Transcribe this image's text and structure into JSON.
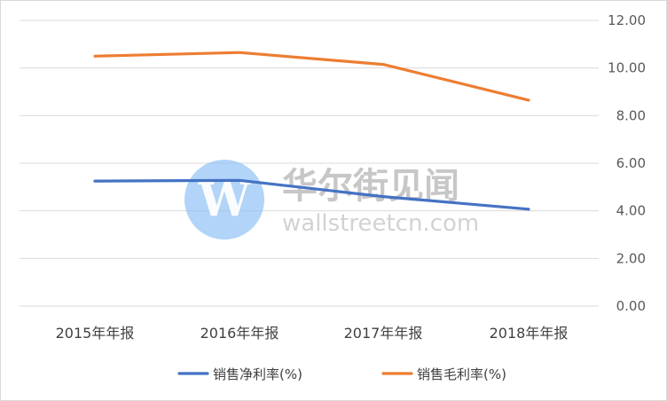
{
  "chart_data": {
    "type": "line",
    "categories": [
      "2015年年报",
      "2016年年报",
      "2017年年报",
      "2018年年报"
    ],
    "series": [
      {
        "name": "销售净利率(%)",
        "values": [
          5.25,
          5.28,
          4.6,
          4.07
        ],
        "color": "#4472c4"
      },
      {
        "name": "销售毛利率(%)",
        "values": [
          10.5,
          10.65,
          10.15,
          8.65
        ],
        "color": "#ed7d31"
      }
    ],
    "y_ticks": [
      "0.00",
      "2.00",
      "4.00",
      "6.00",
      "8.00",
      "10.00",
      "12.00"
    ],
    "ylim": [
      0,
      12
    ],
    "y_axis_side": "right",
    "grid": true,
    "legend": "bottom"
  },
  "watermark": {
    "cn_text": "华尔街见闻",
    "en_text": "wallstreetcn.com",
    "logo_letter": "W",
    "logo_color": "#90c2f5"
  }
}
